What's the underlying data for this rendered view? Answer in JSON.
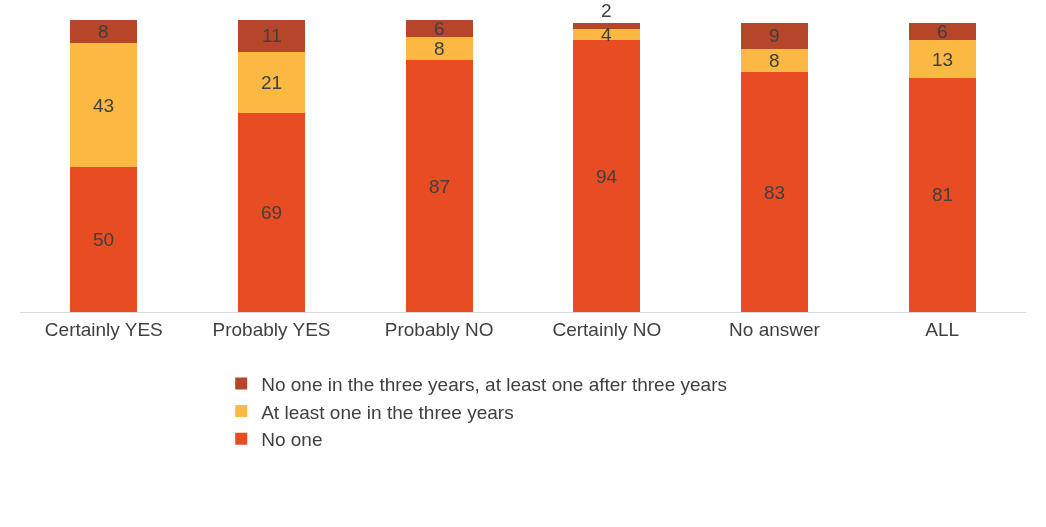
{
  "chart_data": {
    "type": "bar",
    "stacked": true,
    "data_labels": true,
    "legend": "bottom",
    "grid": false,
    "categories": [
      "Certainly YES",
      "Probably YES",
      "Probably NO",
      "Certainly NO",
      "No answer",
      "ALL"
    ],
    "series": [
      {
        "name": "No one",
        "color": "#e84c22",
        "values": [
          50,
          69,
          87,
          94,
          83,
          81
        ]
      },
      {
        "name": "At least one in the three years",
        "color": "#fbb843",
        "values": [
          43,
          21,
          8,
          4,
          8,
          13
        ]
      },
      {
        "name": "No one in the three years, at least one after three years",
        "color": "#b5462a",
        "values": [
          8,
          11,
          6,
          2,
          9,
          6
        ]
      }
    ]
  }
}
